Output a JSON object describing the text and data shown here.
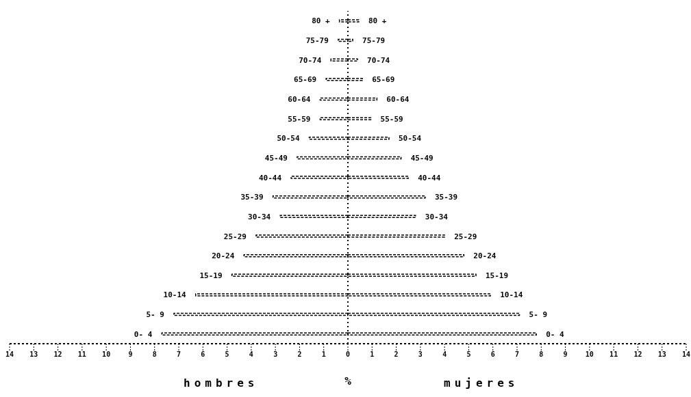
{
  "chart_data": {
    "type": "bar",
    "orientation": "horizontal",
    "stacked": true,
    "xlabel": "%",
    "categories": [
      "80 +",
      "75-79",
      "70-74",
      "65-69",
      "60-64",
      "55-59",
      "50-54",
      "45-49",
      "40-44",
      "35-39",
      "30-34",
      "25-29",
      "20-24",
      "15-19",
      "10-14",
      "5- 9",
      "0- 4"
    ],
    "series": [
      {
        "color": "#000000",
        "values": [
          -0.35,
          -0.4,
          -0.7,
          -0.9,
          -1.15,
          -1.15,
          -1.6,
          -2.1,
          -2.35,
          -3.1,
          -2.8,
          -3.8,
          -4.3,
          -4.8,
          -6.3,
          -7.2,
          -7.7
        ]
      },
      {
        "color": "#000000",
        "values": [
          0.45,
          0.2,
          0.4,
          0.6,
          1.2,
          0.95,
          1.7,
          2.2,
          2.5,
          3.2,
          2.8,
          4.0,
          4.8,
          5.3,
          5.9,
          7.1,
          7.8
        ]
      }
    ],
    "xlim": [
      -14,
      14
    ],
    "xticks": [
      {
        "value": -14,
        "label": "14"
      },
      {
        "value": -13,
        "label": "13"
      },
      {
        "value": -12,
        "label": "12"
      },
      {
        "value": -11,
        "label": "11"
      },
      {
        "value": -10,
        "label": "10"
      },
      {
        "value": -9,
        "label": "9"
      },
      {
        "value": -8,
        "label": "8"
      },
      {
        "value": -7,
        "label": "7"
      },
      {
        "value": -6,
        "label": "6"
      },
      {
        "value": -5,
        "label": "5"
      },
      {
        "value": -4,
        "label": "4"
      },
      {
        "value": -3,
        "label": "3"
      },
      {
        "value": -2,
        "label": "2"
      },
      {
        "value": -1,
        "label": "1"
      },
      0,
      1,
      2,
      3,
      4,
      5,
      6,
      7,
      8,
      9,
      10,
      11,
      12,
      13,
      14
    ],
    "ref_lines": [
      {
        "axis": "x",
        "value": 0,
        "line_style": "dotted"
      }
    ],
    "annotations": [
      "hombres",
      "mujeres"
    ],
    "grid": false,
    "legend": false
  }
}
